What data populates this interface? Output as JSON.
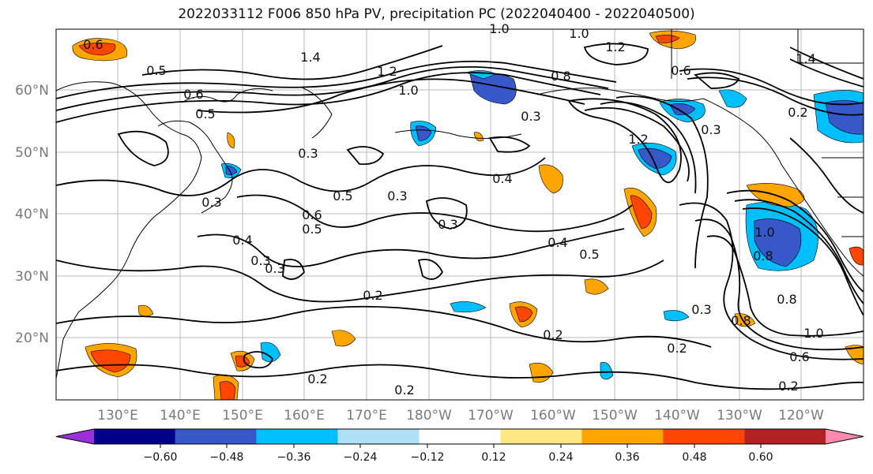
{
  "title": "2022033112 F006 850 hPa PV, precipitation PC (2022040400 - 2022040500)",
  "lat_labels": [
    "60°N",
    "50°N",
    "40°N",
    "30°N",
    "20°N"
  ],
  "lon_labels": [
    "130°E",
    "140°E",
    "150°E",
    "160°E",
    "170°E",
    "180°W",
    "170°W",
    "160°W",
    "150°W",
    "140°W",
    "130°W",
    "120°W"
  ],
  "colorbar": {
    "colors": [
      "#9b30d9",
      "#00008b",
      "#3658c8",
      "#00bfff",
      "#aee0f8",
      "#ffffff",
      "#ffe884",
      "#ffa500",
      "#ff4500",
      "#b22222",
      "#ff88b0"
    ],
    "tick_labels": [
      "−0.60",
      "−0.48",
      "−0.36",
      "−0.24",
      "−0.12",
      "0.12",
      "0.24",
      "0.36",
      "0.48",
      "0.60"
    ]
  },
  "contour_labels": [
    "0.6",
    "0.5",
    "1.4",
    "1.2",
    "1.0",
    "1.0",
    "1.2",
    "0.8",
    "1.4",
    "0.6",
    "1.0",
    "0.5",
    "0.3",
    "0.6",
    "0.3",
    "0.2",
    "1.2",
    "0.3",
    "0.5",
    "0.3",
    "0.3",
    "0.4",
    "0.3",
    "0.6",
    "0.5",
    "0.3",
    "0.4",
    "0.5",
    "0.2",
    "0.4",
    "0.3",
    "0.2",
    "0.8",
    "0.3",
    "0.8",
    "1.0",
    "0.8",
    "0.2",
    "0.6",
    "1.0",
    "0.2",
    "0.2",
    "0.2"
  ]
}
